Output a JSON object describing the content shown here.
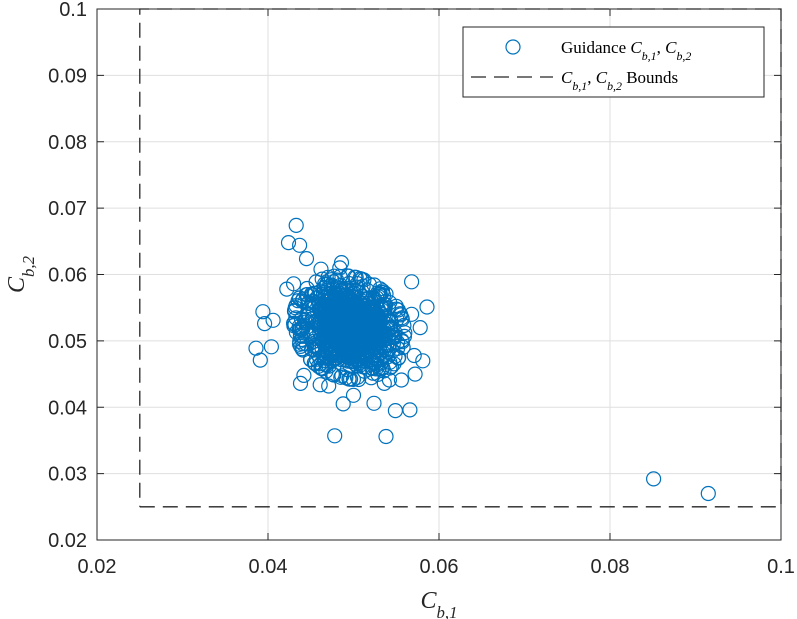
{
  "chart_data": {
    "type": "scatter",
    "title": "",
    "xlabel": "C_{b,1}",
    "ylabel": "C_{b,2}",
    "xlim": [
      0.02,
      0.1
    ],
    "ylim": [
      0.02,
      0.1
    ],
    "x_ticks": [
      0.02,
      0.04,
      0.06,
      0.08,
      0.1
    ],
    "x_tick_labels": [
      "0.02",
      "0.04",
      "0.06",
      "0.08",
      "0.1"
    ],
    "y_ticks": [
      0.02,
      0.03,
      0.04,
      0.05,
      0.06,
      0.07,
      0.08,
      0.09,
      0.1
    ],
    "y_tick_labels": [
      "0.02",
      "0.03",
      "0.04",
      "0.05",
      "0.06",
      "0.07",
      "0.08",
      "0.09",
      "0.1"
    ],
    "grid": true,
    "legend_position": "top-right",
    "colors": {
      "scatter": "#0072bd",
      "bounds": "#262626",
      "grid": "#dfdfdf"
    },
    "series": [
      {
        "name": "Guidance C_{b,1}, C_{b,2}",
        "kind": "scatter",
        "marker": "open-circle",
        "cluster": {
          "center": [
            0.0495,
            0.052
          ],
          "spread": [
            0.0028,
            0.0034
          ],
          "count": 900
        },
        "points": [
          [
            0.0433,
            0.0674
          ],
          [
            0.0424,
            0.0648
          ],
          [
            0.0437,
            0.0644
          ],
          [
            0.0445,
            0.0624
          ],
          [
            0.0486,
            0.0618
          ],
          [
            0.0484,
            0.061
          ],
          [
            0.0462,
            0.0608
          ],
          [
            0.043,
            0.0586
          ],
          [
            0.0422,
            0.0578
          ],
          [
            0.0568,
            0.0589
          ],
          [
            0.0586,
            0.0551
          ],
          [
            0.0394,
            0.0544
          ],
          [
            0.0396,
            0.0526
          ],
          [
            0.0406,
            0.0531
          ],
          [
            0.0386,
            0.0489
          ],
          [
            0.0404,
            0.0491
          ],
          [
            0.0391,
            0.0471
          ],
          [
            0.0578,
            0.052
          ],
          [
            0.0568,
            0.054
          ],
          [
            0.0571,
            0.0478
          ],
          [
            0.0581,
            0.047
          ],
          [
            0.0572,
            0.045
          ],
          [
            0.0556,
            0.0441
          ],
          [
            0.0542,
            0.0441
          ],
          [
            0.0536,
            0.0436
          ],
          [
            0.0549,
            0.0395
          ],
          [
            0.0566,
            0.0396
          ],
          [
            0.0524,
            0.0406
          ],
          [
            0.05,
            0.0418
          ],
          [
            0.0488,
            0.0405
          ],
          [
            0.0471,
            0.0432
          ],
          [
            0.0461,
            0.0434
          ],
          [
            0.0438,
            0.0436
          ],
          [
            0.0442,
            0.0448
          ],
          [
            0.0478,
            0.0357
          ],
          [
            0.0538,
            0.0356
          ],
          [
            0.0851,
            0.0292
          ],
          [
            0.0915,
            0.027
          ]
        ]
      },
      {
        "name": "C_{b,1}, C_{b,2} Bounds",
        "kind": "line",
        "style": "dashed",
        "x": [
          0.025,
          0.1,
          0.1,
          0.025,
          0.025
        ],
        "y": [
          0.025,
          0.025,
          0.1,
          0.1,
          0.025
        ]
      }
    ]
  }
}
